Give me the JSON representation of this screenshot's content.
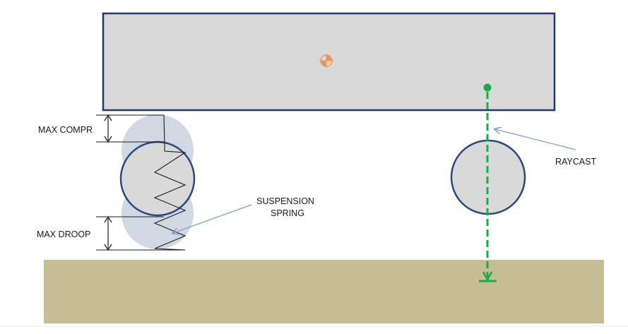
{
  "labels": {
    "max_compr": "MAX COMPR",
    "max_droop": "MAX DROOP",
    "suspension_line1": "SUSPENSION",
    "suspension_line2": "SPRING",
    "raycast": "RAYCAST"
  },
  "icons": {
    "center_of_mass": "center-of-mass-icon"
  },
  "colors": {
    "body_fill": "#d9d9d9",
    "body_stroke": "#1f3a68",
    "wheel_fill": "#d9d9d9",
    "wheel_stroke": "#2b4a7e",
    "ghost_wheel_fill": "#c7d2de",
    "ground_fill": "#c6bd95",
    "raycast_green": "#1aaa4a",
    "annotation_arrow": "#7f9cc8",
    "com_orange": "#f0955a",
    "ink": "#1a1a1a"
  }
}
